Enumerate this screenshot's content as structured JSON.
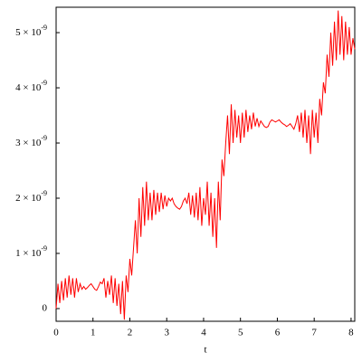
{
  "chart_data": {
    "type": "line",
    "x_label": "t",
    "x": [
      0,
      0.05,
      0.1,
      0.15,
      0.2,
      0.25,
      0.3,
      0.35,
      0.4,
      0.45,
      0.5,
      0.55,
      0.6,
      0.65,
      0.7,
      0.75,
      0.8,
      0.85,
      0.9,
      0.95,
      1,
      1.05,
      1.1,
      1.15,
      1.2,
      1.25,
      1.3,
      1.35,
      1.4,
      1.45,
      1.5,
      1.55,
      1.6,
      1.65,
      1.7,
      1.75,
      1.8,
      1.85,
      1.9,
      1.95,
      2,
      2.05,
      2.1,
      2.15,
      2.2,
      2.25,
      2.3,
      2.35,
      2.4,
      2.45,
      2.5,
      2.55,
      2.6,
      2.65,
      2.7,
      2.75,
      2.8,
      2.85,
      2.9,
      2.95,
      3,
      3.05,
      3.1,
      3.15,
      3.2,
      3.25,
      3.3,
      3.35,
      3.4,
      3.45,
      3.5,
      3.55,
      3.6,
      3.65,
      3.7,
      3.75,
      3.8,
      3.85,
      3.9,
      3.95,
      4,
      4.05,
      4.1,
      4.15,
      4.2,
      4.25,
      4.3,
      4.35,
      4.4,
      4.45,
      4.5,
      4.55,
      4.6,
      4.65,
      4.7,
      4.75,
      4.8,
      4.85,
      4.9,
      4.95,
      5,
      5.05,
      5.1,
      5.15,
      5.2,
      5.25,
      5.3,
      5.35,
      5.4,
      5.45,
      5.5,
      5.55,
      5.6,
      5.65,
      5.7,
      5.75,
      5.8,
      5.85,
      5.9,
      5.95,
      6,
      6.05,
      6.1,
      6.15,
      6.2,
      6.25,
      6.3,
      6.35,
      6.4,
      6.45,
      6.5,
      6.55,
      6.6,
      6.65,
      6.7,
      6.75,
      6.8,
      6.85,
      6.9,
      6.95,
      7,
      7.05,
      7.1,
      7.15,
      7.2,
      7.25,
      7.3,
      7.35,
      7.4,
      7.45,
      7.5,
      7.55,
      7.6,
      7.65,
      7.7,
      7.75,
      7.8,
      7.85,
      7.9,
      7.95,
      8,
      8.05,
      8.1
    ],
    "series": [
      {
        "color": "#ff0000",
        "values": [
          0,
          4.5e-10,
          1e-10,
          5e-10,
          1.5e-10,
          5.5e-10,
          2e-10,
          6e-10,
          2.5e-10,
          5.5e-10,
          2e-10,
          5.5e-10,
          3e-10,
          4.5e-10,
          3.5e-10,
          4e-10,
          3.5e-10,
          3.8e-10,
          4.2e-10,
          4.5e-10,
          4e-10,
          3.5e-10,
          3.3e-10,
          4e-10,
          4.8e-10,
          4.5e-10,
          5.5e-10,
          2e-10,
          5e-10,
          2.5e-10,
          6e-10,
          1e-10,
          5.5e-10,
          5e-11,
          4.5e-10,
          -1e-10,
          5e-10,
          -2e-10,
          6e-10,
          3e-10,
          9e-10,
          6e-10,
          1.1e-09,
          1.6e-09,
          1e-09,
          2e-09,
          1.3e-09,
          2.2e-09,
          1.5e-09,
          2.3e-09,
          1.6e-09,
          2.1e-09,
          1.6e-09,
          2.15e-09,
          1.7e-09,
          2.1e-09,
          1.75e-09,
          2.1e-09,
          1.8e-09,
          2.05e-09,
          1.85e-09,
          2e-09,
          1.95e-09,
          2e-09,
          1.9e-09,
          1.85e-09,
          1.82e-09,
          1.8e-09,
          1.85e-09,
          1.95e-09,
          2e-09,
          1.9e-09,
          2.1e-09,
          1.7e-09,
          2.05e-09,
          1.65e-09,
          2.1e-09,
          1.6e-09,
          2.2e-09,
          1.5e-09,
          2e-09,
          1.7e-09,
          2.3e-09,
          1.5e-09,
          2.1e-09,
          1.3e-09,
          2e-09,
          1.1e-09,
          2.3e-09,
          1.6e-09,
          2.7e-09,
          2.4e-09,
          3e-09,
          3.5e-09,
          2.8e-09,
          3.7e-09,
          3e-09,
          3.6e-09,
          3.1e-09,
          3.5e-09,
          3e-09,
          3.55e-09,
          3.1e-09,
          3.6e-09,
          3.2e-09,
          3.5e-09,
          3.25e-09,
          3.55e-09,
          3.3e-09,
          3.45e-09,
          3.3e-09,
          3.4e-09,
          3.35e-09,
          3.3e-09,
          3.28e-09,
          3.3e-09,
          3.38e-09,
          3.42e-09,
          3.4e-09,
          3.38e-09,
          3.4e-09,
          3.42e-09,
          3.38e-09,
          3.35e-09,
          3.33e-09,
          3.3e-09,
          3.32e-09,
          3.35e-09,
          3.3e-09,
          3.25e-09,
          3.35e-09,
          3.5e-09,
          3.2e-09,
          3.55e-09,
          3.1e-09,
          3.6e-09,
          3e-09,
          3.5e-09,
          2.8e-09,
          3.6e-09,
          3.1e-09,
          3.55e-09,
          3e-09,
          3.8e-09,
          3.5e-09,
          4.1e-09,
          3.9e-09,
          4.6e-09,
          4.2e-09,
          5e-09,
          4.4e-09,
          5.2e-09,
          4.5e-09,
          5.4e-09,
          4.6e-09,
          5.3e-09,
          4.5e-09,
          5.2e-09,
          4.6e-09,
          5.1e-09,
          4.6e-09,
          4.9e-09,
          4.7e-09
        ]
      }
    ],
    "xlim": [
      0,
      8.1
    ],
    "xticks": [
      0,
      1,
      2,
      3,
      4,
      5,
      6,
      7,
      8
    ],
    "ylim": [
      -2.3e-10,
      5.46e-09
    ],
    "yticks": [
      0,
      {
        "value": 1e-09,
        "label": "1 × 10",
        "exponent": "-9"
      },
      {
        "value": 2e-09,
        "label": "2 × 10",
        "exponent": "-9"
      },
      {
        "value": 3e-09,
        "label": "3 × 10",
        "exponent": "-9"
      },
      {
        "value": 4e-09,
        "label": "4 × 10",
        "exponent": "-9"
      },
      {
        "value": 5e-09,
        "label": "5 × 10",
        "exponent": "-9"
      }
    ]
  }
}
